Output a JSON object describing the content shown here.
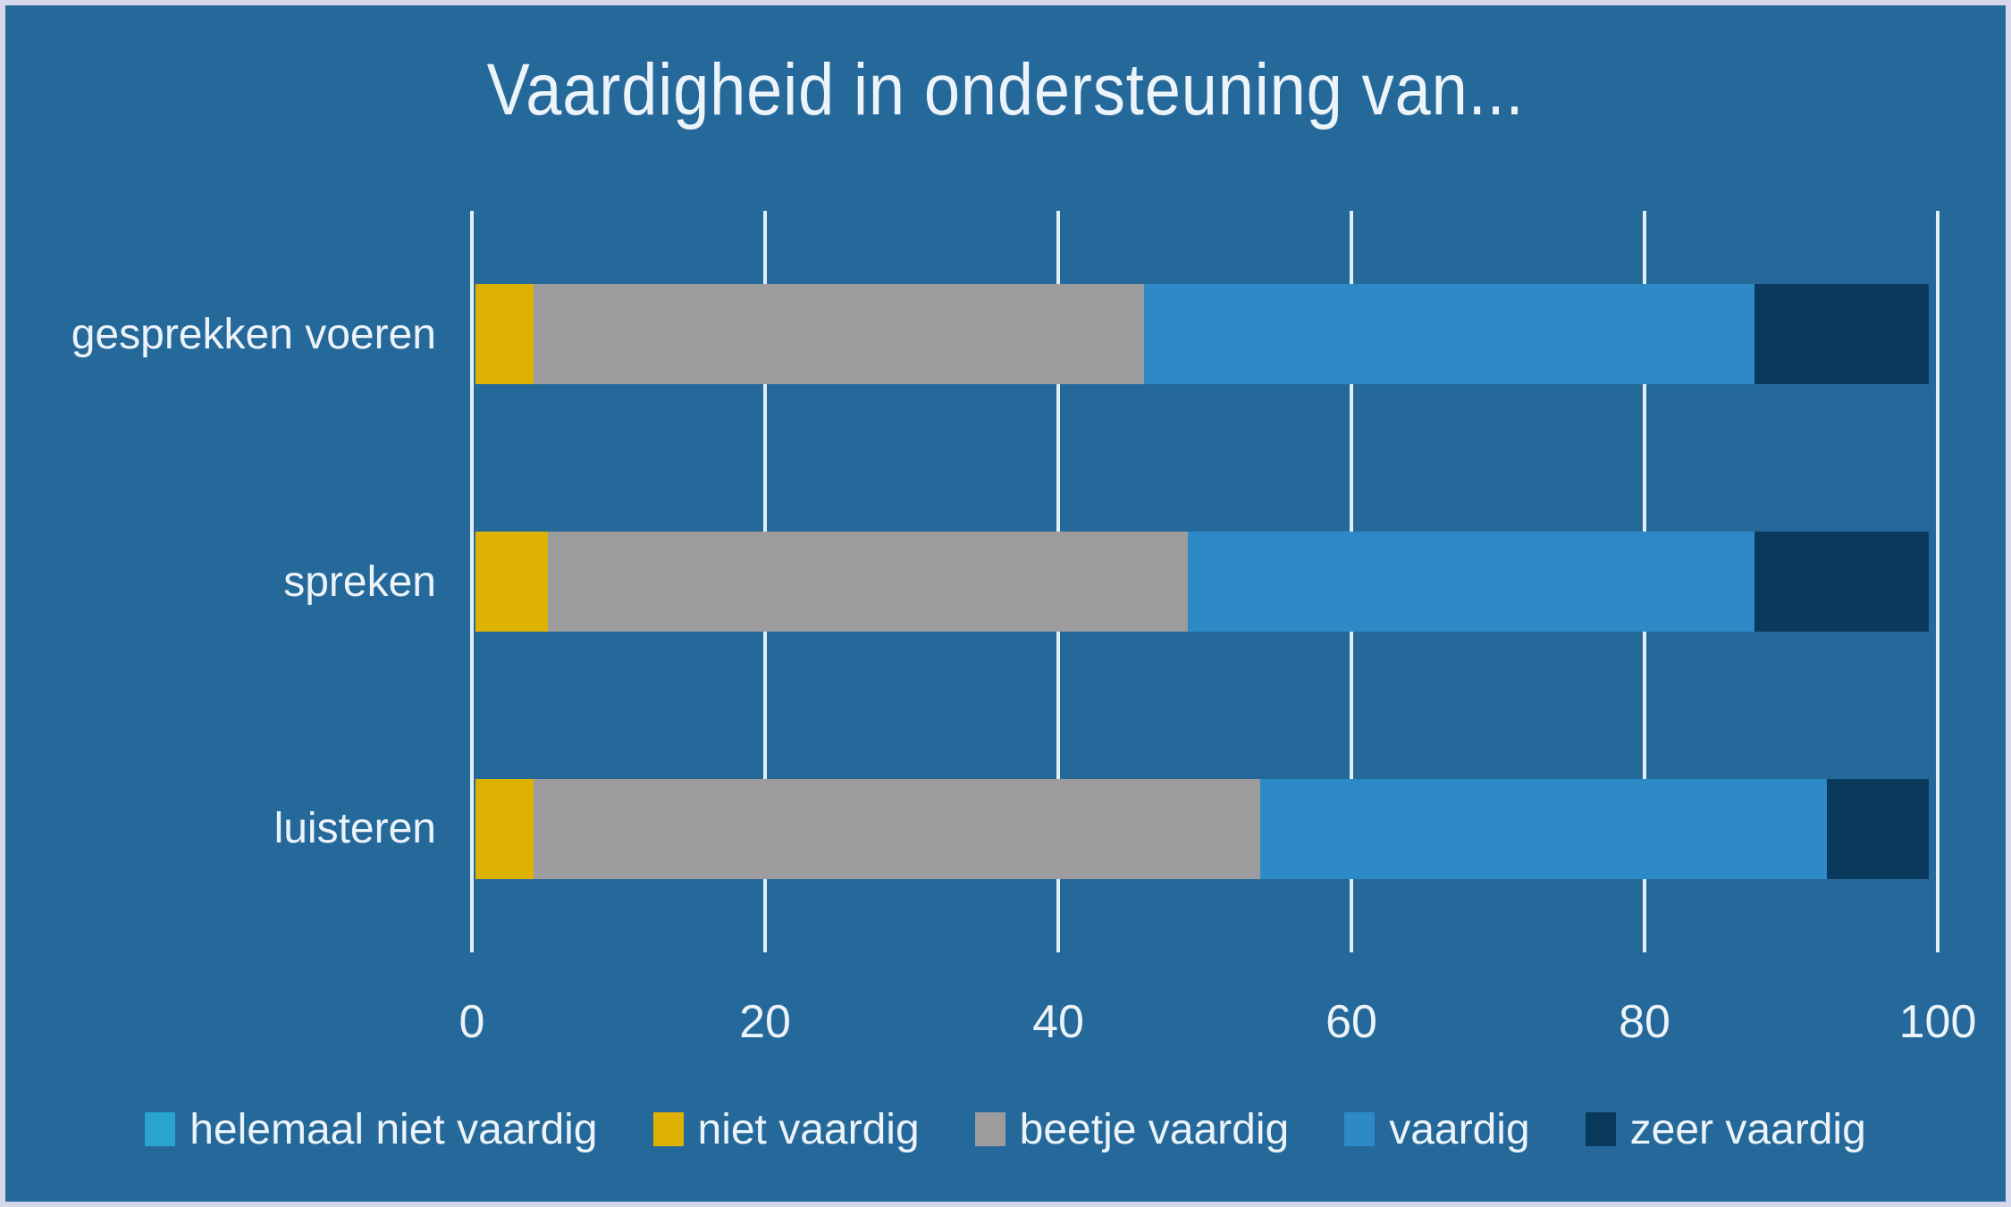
{
  "window": {
    "background": "#25699B",
    "border_color": "#D6D7EA"
  },
  "chart_data": {
    "type": "bar",
    "orientation": "horizontal-stacked",
    "title": "Vaardigheid in ondersteuning van...",
    "categories": [
      "gesprekken voeren",
      "spreken",
      "luisteren"
    ],
    "series": [
      {
        "name": "helemaal niet vaardig",
        "color": "#29A4CE",
        "values": [
          0,
          0,
          0
        ]
      },
      {
        "name": "niet vaardig",
        "color": "#DDB204",
        "values": [
          4,
          5,
          4
        ]
      },
      {
        "name": "beetje vaardig",
        "color": "#9C9B9D",
        "values": [
          42,
          44,
          50
        ]
      },
      {
        "name": "vaardig",
        "color": "#2E8AC6",
        "values": [
          42,
          39,
          39
        ]
      },
      {
        "name": "zeer vaardig",
        "color": "#093A5E",
        "values": [
          12,
          12,
          7
        ]
      }
    ],
    "xlim": [
      0,
      100
    ],
    "x_ticks": [
      0,
      20,
      40,
      60,
      80,
      100
    ],
    "grid": "vertical-gridlines-on",
    "legend_position": "bottom",
    "colors": {
      "gridline": "#E4EEF8",
      "text": "#ECF3F9"
    }
  }
}
